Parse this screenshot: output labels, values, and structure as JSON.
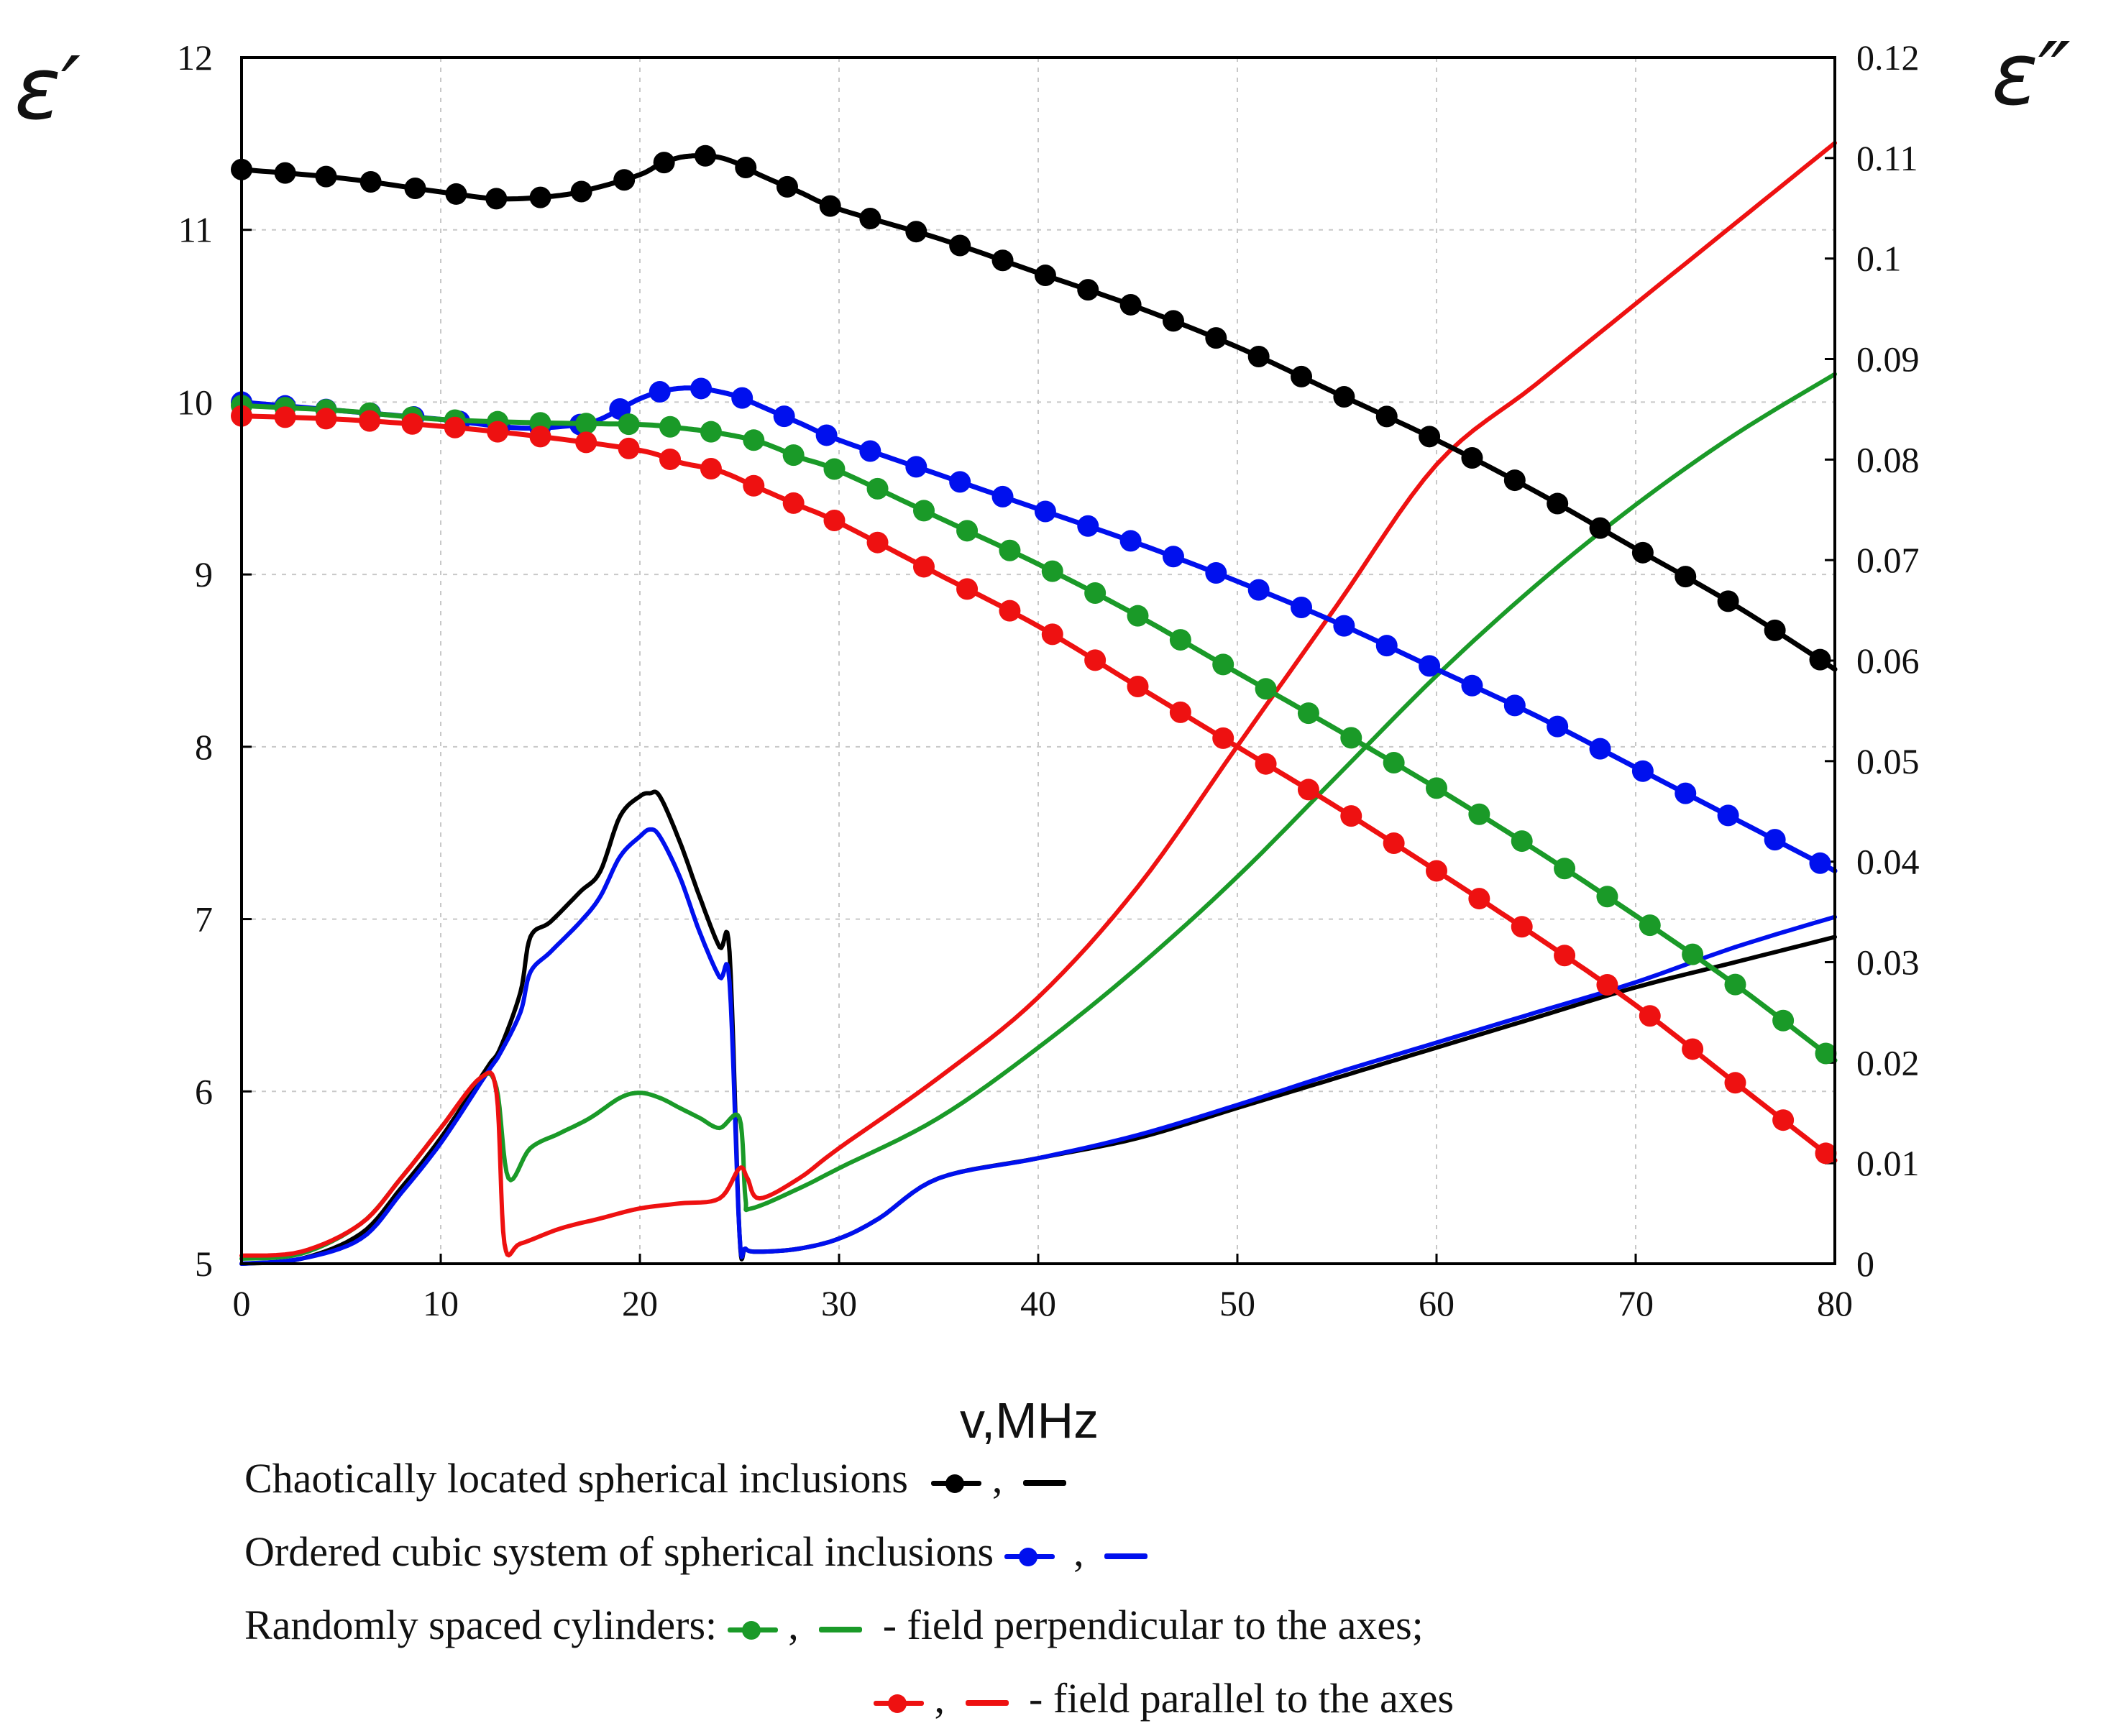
{
  "chart_data": {
    "type": "line",
    "title": "",
    "xlabel": "v,MHz",
    "ylabel_left": "ε′",
    "ylabel_right": "ε″",
    "xlim": [
      0,
      80
    ],
    "ylim_left": [
      5,
      12
    ],
    "ylim_right": [
      0,
      0.12
    ],
    "grid": true,
    "x_ticks": [
      "0",
      "10",
      "20",
      "30",
      "40",
      "50",
      "60",
      "70",
      "80"
    ],
    "y_left_ticks": [
      "5",
      "6",
      "7",
      "8",
      "9",
      "10",
      "11",
      "12"
    ],
    "y_right_ticks": [
      "0",
      "0.01",
      "0.02",
      "0.03",
      "0.04",
      "0.05",
      "0.06",
      "0.07",
      "0.08",
      "0.09",
      "0.1",
      "0.11",
      "0.12"
    ],
    "series": [
      {
        "name": "Chaotically located spherical inclusions – ε′",
        "axis": "left",
        "color": "#000000",
        "style": "markers",
        "x": [
          0,
          5,
          10,
          13,
          16,
          18,
          20,
          21,
          22,
          23,
          24,
          25,
          26,
          28,
          30,
          35,
          40,
          45,
          50,
          55,
          60,
          65,
          70,
          75,
          80
        ],
        "y": [
          11.35,
          11.3,
          11.22,
          11.18,
          11.2,
          11.25,
          11.32,
          11.38,
          11.42,
          11.43,
          11.42,
          11.38,
          11.32,
          11.22,
          11.12,
          10.95,
          10.75,
          10.55,
          10.32,
          10.05,
          9.78,
          9.48,
          9.15,
          8.82,
          8.45
        ]
      },
      {
        "name": "Ordered cubic system of spherical inclusions – ε′",
        "axis": "left",
        "color": "#0010ee",
        "style": "markers",
        "x": [
          0,
          5,
          10,
          14,
          17,
          18,
          19,
          20,
          21,
          22,
          23,
          24,
          25,
          26,
          28,
          30,
          35,
          40,
          45,
          50,
          55,
          60,
          65,
          70,
          75,
          80
        ],
        "y": [
          10.0,
          9.95,
          9.9,
          9.85,
          9.87,
          9.9,
          9.96,
          10.02,
          10.06,
          10.08,
          10.08,
          10.06,
          10.03,
          9.98,
          9.88,
          9.78,
          9.58,
          9.38,
          9.18,
          8.96,
          8.72,
          8.45,
          8.18,
          7.88,
          7.58,
          7.28
        ]
      },
      {
        "name": "Randomly spaced cylinders, field perpendicular to the axes – ε′",
        "axis": "left",
        "color": "#1a9a28",
        "style": "markers",
        "x": [
          0,
          5,
          10,
          15,
          20,
          22,
          24,
          26,
          28,
          30,
          35,
          40,
          45,
          50,
          55,
          60,
          65,
          70,
          75,
          80
        ],
        "y": [
          9.98,
          9.95,
          9.9,
          9.88,
          9.87,
          9.85,
          9.82,
          9.77,
          9.68,
          9.6,
          9.33,
          9.06,
          8.76,
          8.43,
          8.1,
          7.76,
          7.4,
          7.02,
          6.62,
          6.18
        ]
      },
      {
        "name": "Randomly spaced cylinders, field parallel to the axes – ε′",
        "axis": "left",
        "color": "#ee1111",
        "style": "markers",
        "x": [
          0,
          5,
          10,
          15,
          20,
          22,
          24,
          26,
          28,
          30,
          35,
          40,
          45,
          50,
          55,
          60,
          65,
          70,
          75,
          80
        ],
        "y": [
          9.92,
          9.9,
          9.86,
          9.8,
          9.72,
          9.65,
          9.6,
          9.5,
          9.4,
          9.3,
          9.0,
          8.7,
          8.35,
          8.0,
          7.65,
          7.28,
          6.9,
          6.5,
          6.05,
          5.6
        ]
      },
      {
        "name": "Chaotically located spherical inclusions – ε″",
        "axis": "right",
        "color": "#000000",
        "style": "line",
        "x": [
          0,
          3,
          6,
          8,
          10,
          12,
          12.5,
          13,
          14,
          14.5,
          15.5,
          17,
          18,
          19,
          20,
          20.5,
          21,
          22,
          23,
          24,
          24.5,
          25,
          25.3,
          26,
          28,
          30,
          32,
          35,
          40,
          45,
          50,
          55,
          60,
          65,
          70,
          75,
          80
        ],
        "y": [
          0,
          0.0005,
          0.003,
          0.0075,
          0.0125,
          0.0185,
          0.02,
          0.0215,
          0.027,
          0.0325,
          0.034,
          0.037,
          0.039,
          0.0445,
          0.0465,
          0.0468,
          0.0465,
          0.042,
          0.0365,
          0.0315,
          0.031,
          0.003,
          0.0015,
          0.0012,
          0.0015,
          0.0025,
          0.0045,
          0.0085,
          0.0105,
          0.0125,
          0.0155,
          0.0185,
          0.0215,
          0.0245,
          0.0275,
          0.03,
          0.0325
        ]
      },
      {
        "name": "Ordered cubic system of spherical inclusions – ε″",
        "axis": "right",
        "color": "#0010ee",
        "style": "line",
        "x": [
          0,
          3,
          6,
          8,
          10,
          12,
          12.5,
          13,
          14,
          14.5,
          15.5,
          17,
          18,
          19,
          20,
          20.5,
          21,
          22,
          23,
          24,
          24.5,
          25,
          25.3,
          26,
          28,
          30,
          32,
          35,
          40,
          45,
          50,
          55,
          60,
          65,
          70,
          75,
          80
        ],
        "y": [
          0,
          0.0005,
          0.0025,
          0.007,
          0.012,
          0.018,
          0.0195,
          0.021,
          0.025,
          0.029,
          0.031,
          0.034,
          0.0365,
          0.0405,
          0.0425,
          0.0432,
          0.0425,
          0.0385,
          0.033,
          0.0285,
          0.028,
          0.003,
          0.0015,
          0.0012,
          0.0015,
          0.0025,
          0.0045,
          0.0085,
          0.0105,
          0.0128,
          0.0158,
          0.019,
          0.022,
          0.025,
          0.028,
          0.0315,
          0.0345
        ]
      },
      {
        "name": "Randomly spaced cylinders, field perpendicular to the axes – ε″",
        "axis": "right",
        "color": "#1a9a28",
        "style": "line",
        "x": [
          0,
          3,
          6,
          8,
          10,
          12,
          12.8,
          13.4,
          14.5,
          16,
          17.5,
          19,
          20,
          21,
          22,
          23,
          24,
          25,
          25.3,
          25.6,
          28,
          30,
          35,
          40,
          45,
          50,
          55,
          60,
          65,
          70,
          75,
          80
        ],
        "y": [
          0.0005,
          0.001,
          0.004,
          0.0085,
          0.0135,
          0.0185,
          0.0175,
          0.0085,
          0.0115,
          0.013,
          0.0145,
          0.0165,
          0.017,
          0.0165,
          0.0155,
          0.0145,
          0.0135,
          0.0145,
          0.0065,
          0.0055,
          0.0075,
          0.0095,
          0.0145,
          0.0215,
          0.0295,
          0.0385,
          0.0485,
          0.0585,
          0.0675,
          0.0755,
          0.0825,
          0.0885
        ]
      },
      {
        "name": "Randomly spaced cylinders, field parallel to the axes – ε″",
        "axis": "right",
        "color": "#ee1111",
        "style": "line",
        "x": [
          0,
          3,
          6,
          8,
          10,
          12,
          12.8,
          13.2,
          14,
          16,
          18,
          20,
          22,
          24,
          25,
          25.4,
          26,
          28,
          30,
          35,
          40,
          45,
          50,
          55,
          60,
          65,
          70,
          75,
          80
        ],
        "y": [
          0.0008,
          0.0012,
          0.004,
          0.0085,
          0.0135,
          0.0185,
          0.017,
          0.002,
          0.002,
          0.0035,
          0.0045,
          0.0055,
          0.006,
          0.0065,
          0.0095,
          0.0085,
          0.0065,
          0.0085,
          0.0115,
          0.0185,
          0.0265,
          0.0375,
          0.0515,
          0.0655,
          0.0795,
          0.0875,
          0.0955,
          0.1035,
          0.1115
        ]
      }
    ]
  },
  "legend": {
    "line1_text": "Chaotically located spherical inclusions",
    "line1_sep": ",",
    "line2_text": "Ordered cubic system of spherical inclusions",
    "line2_sep": ",",
    "line3_text": "Randomly spaced cylinders:",
    "line3_sep": ",",
    "line3_suffix": "- field perpendicular to the axes;",
    "line4_sep": ",",
    "line4_suffix": "- field parallel to the axes"
  },
  "colors": {
    "black": "#000000",
    "blue": "#0010ee",
    "green": "#1a9a28",
    "red": "#ee1111"
  }
}
